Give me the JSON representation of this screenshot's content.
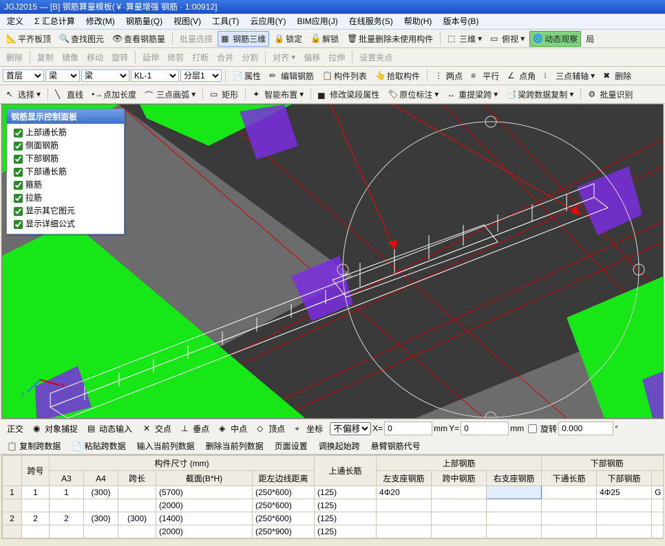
{
  "title": "JGJ2015 — [B] 钢筋算量模板(￥·算量增强 钢筋 · 1:00912]",
  "menus": [
    "定义",
    "Σ 汇总计算",
    "修改(M)",
    "钢筋量(Q)",
    "视图(V)",
    "工具(T)",
    "云应用(Y)",
    "BIM应用(J)",
    "在线服务(S)",
    "帮助(H)",
    "版本号(B)"
  ],
  "tb1": {
    "pingqi": "平齐板顶",
    "find": "查找图元",
    "look": "查看钢筋量",
    "plxz": "批量选择",
    "sw": "钢筋三维",
    "lock": "锁定",
    "unlock": "解锁",
    "pldel": "批量删除未使用构件",
    "sanwei": "三维",
    "fushi": "俯视",
    "dongtai": "动态观察",
    "juti": "局"
  },
  "tb2": {
    "del": "删除",
    "copy": "复制",
    "mirror": "镜像",
    "move": "移动",
    "rot": "旋转",
    "ext": "延伸",
    "trim": "修剪",
    "break": "打断",
    "merge": "合并",
    "split": "分割",
    "align": "对齐",
    "offset": "偏移",
    "stretch": "拉伸",
    "grip": "设置夹点"
  },
  "tb3": {
    "floor": "首层",
    "member": "梁",
    "member2": "梁",
    "name": "KL-1",
    "fc": "分层1",
    "attr": "属性",
    "edit": "编辑钢筋",
    "list": "构件列表",
    "pick": "拾取构件",
    "two": "两点",
    "px": "平行",
    "dj": "点角",
    "sd": "三点辅轴",
    "del2": "删除"
  },
  "tb4": {
    "sel": "选择",
    "zx": "直线",
    "djc": "点加长度",
    "sdh": "三点画弧",
    "rect": "矩形",
    "znbz": "智能布置",
    "xglsx": "修改梁段属性",
    "ywbz": "原位标注",
    "czlk": "重提梁跨",
    "lksjfz": "梁跨数据复制",
    "plsb": "批量识别"
  },
  "panel": {
    "title": "钢筋显示控制面板",
    "items": [
      "上部通长筋",
      "侧面钢筋",
      "下部钢筋",
      "下部通长筋",
      "箍筋",
      "拉筋",
      "显示其它图元",
      "显示详细公式"
    ]
  },
  "status": {
    "zj": "正交",
    "dx": "对象捕捉",
    "dt": "动态输入",
    "jd": "交点",
    "cz": "垂点",
    "zd": "中点",
    "dd": "顶点",
    "zb": "坐标",
    "bpy": "不偏移",
    "x": "X=",
    "xv": "0",
    "y": "Y=",
    "yv": "0",
    "mm": "mm",
    "xz": "旋转",
    "xzv": "0.000",
    "deg": "°"
  },
  "tabops": {
    "a": "复制跨数据",
    "b": "粘贴跨数据",
    "c": "输入当前列数据",
    "d": "删除当前列数据",
    "e": "页面设置",
    "f": "调换起始跨",
    "g": "悬臂钢筋代号"
  },
  "table": {
    "group1": "构件尺寸 (mm)",
    "group2": "上通长筋",
    "group3": "上部钢筋",
    "group4": "下部钢筋",
    "h": [
      "跨号",
      "A3",
      "A4",
      "跨长",
      "截面(B*H)",
      "距左边线距离",
      "",
      "左支座钢筋",
      "跨中钢筋",
      "右支座钢筋",
      "下通长筋",
      "下部钢筋"
    ],
    "rows": [
      [
        "1",
        "1",
        "(300)",
        "",
        "(5700)",
        "(250*600)",
        "(125)",
        "4Φ20",
        "",
        "",
        "",
        "4Φ25",
        "G"
      ],
      [
        "",
        "",
        "",
        "",
        "(2000)",
        "(250*600)",
        "(125)",
        "",
        "",
        "",
        "",
        "",
        ""
      ],
      [
        "2",
        "2",
        "(300)",
        "(300)",
        "(1400)",
        "(250*600)",
        "(125)",
        "",
        "",
        "",
        "",
        "",
        ""
      ],
      [
        "",
        "",
        "",
        "",
        "(2000)",
        "(250*900)",
        "(125)",
        "",
        "",
        "",
        "",
        "",
        ""
      ]
    ],
    "focus": {
      "row": 0,
      "col": 10
    }
  },
  "colors": {
    "green": "#17e617",
    "purple": "#7a2fe0",
    "gridred": "#d40000",
    "gray": "#6c6c6c",
    "darkgray": "#3a3a3a",
    "white": "#ffffff"
  }
}
